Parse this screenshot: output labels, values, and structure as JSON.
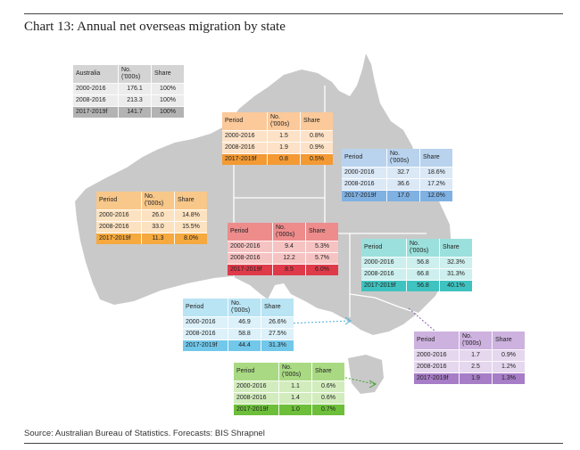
{
  "title": "Chart 13: Annual net overseas migration by state",
  "source": "Source: Australian Bureau of Statistics. Forecasts: BIS Shrapnel",
  "colors": {
    "land": "#c9c9c9",
    "border": "#ffffff",
    "australia": {
      "hdr": "#d4d4d4",
      "row": "#ececec",
      "last": "#b3b3b3"
    },
    "nt": {
      "hdr": "#fbc99a",
      "row": "#fde2c7",
      "last": "#f39a33"
    },
    "qld": {
      "hdr": "#b9d3ee",
      "row": "#dbe8f6",
      "last": "#7fb1e2"
    },
    "wa": {
      "hdr": "#f8c88a",
      "row": "#fce2c0",
      "last": "#f5a93e"
    },
    "sa": {
      "hdr": "#ee8c8c",
      "row": "#f6c3c3",
      "last": "#df3a4a"
    },
    "nsw": {
      "hdr": "#9be0dc",
      "row": "#cdefed",
      "last": "#3fc3c0"
    },
    "vic": {
      "hdr": "#b9e4f4",
      "row": "#dcf1f9",
      "last": "#72c8ea"
    },
    "act": {
      "hdr": "#cdb2df",
      "row": "#e5d7ee",
      "last": "#a67dc6"
    },
    "tas": {
      "hdr": "#a9da83",
      "row": "#d3ecbe",
      "last": "#6dbf3a"
    }
  },
  "tables": {
    "australia": {
      "headers": [
        "Australia",
        "No.\n('000s)",
        "Share"
      ],
      "rows": [
        [
          "2000-2016",
          "176.1",
          "100%"
        ],
        [
          "2008-2016",
          "213.3",
          "100%"
        ],
        [
          "2017-2019f",
          "141.7",
          "100%"
        ]
      ]
    },
    "nt": {
      "headers": [
        "Period",
        "No.\n('000s)",
        "Share"
      ],
      "rows": [
        [
          "2000-2016",
          "1.5",
          "0.8%"
        ],
        [
          "2008-2016",
          "1.9",
          "0.9%"
        ],
        [
          "2017-2019f",
          "0.8",
          "0.5%"
        ]
      ]
    },
    "qld": {
      "headers": [
        "Period",
        "No.\n('000s)",
        "Share"
      ],
      "rows": [
        [
          "2000-2016",
          "32.7",
          "18.6%"
        ],
        [
          "2008-2016",
          "36.6",
          "17.2%"
        ],
        [
          "2017-2019f",
          "17.0",
          "12.0%"
        ]
      ]
    },
    "wa": {
      "headers": [
        "Period",
        "No.\n('000s)",
        "Share"
      ],
      "rows": [
        [
          "2000-2016",
          "26.0",
          "14.8%"
        ],
        [
          "2008-2016",
          "33.0",
          "15.5%"
        ],
        [
          "2017-2019f",
          "11.3",
          "8.0%"
        ]
      ]
    },
    "sa": {
      "headers": [
        "Period",
        "No.\n('000s)",
        "Share"
      ],
      "rows": [
        [
          "2000-2016",
          "9.4",
          "5.3%"
        ],
        [
          "2008-2016",
          "12.2",
          "5.7%"
        ],
        [
          "2017-2019f",
          "8.5",
          "6.0%"
        ]
      ]
    },
    "nsw": {
      "headers": [
        "Period",
        "No.\n('000s)",
        "Share"
      ],
      "rows": [
        [
          "2000-2016",
          "56.8",
          "32.3%"
        ],
        [
          "2008-2016",
          "66.8",
          "31.3%"
        ],
        [
          "2017-2019f",
          "56.8",
          "40.1%"
        ]
      ]
    },
    "vic": {
      "headers": [
        "Period",
        "No.\n('000s)",
        "Share"
      ],
      "rows": [
        [
          "2000-2016",
          "46.9",
          "26.6%"
        ],
        [
          "2008-2016",
          "58.8",
          "27.5%"
        ],
        [
          "2017-2019f",
          "44.4",
          "31.3%"
        ]
      ]
    },
    "act": {
      "headers": [
        "Period",
        "No.\n('000s)",
        "Share"
      ],
      "rows": [
        [
          "2000-2016",
          "1.7",
          "0.9%"
        ],
        [
          "2008-2016",
          "2.5",
          "1.2%"
        ],
        [
          "2017-2019f",
          "1.9",
          "1.3%"
        ]
      ]
    },
    "tas": {
      "headers": [
        "Period",
        "No.\n('000s)",
        "Share"
      ],
      "rows": [
        [
          "2000-2016",
          "1.1",
          "0.6%"
        ],
        [
          "2008-2016",
          "1.4",
          "0.6%"
        ],
        [
          "2017-2019f",
          "1.0",
          "0.7%"
        ]
      ]
    }
  }
}
